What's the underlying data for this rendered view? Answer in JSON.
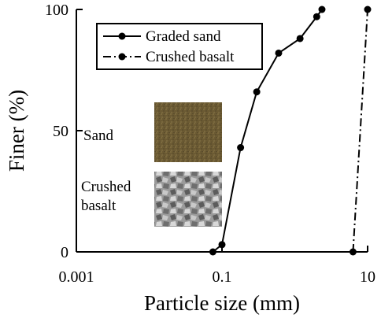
{
  "chart_data": {
    "type": "line",
    "xlabel": "Particle size (mm)",
    "ylabel": "Finer (%)",
    "x_scale": "log",
    "xlim": [
      0.001,
      10
    ],
    "ylim": [
      0,
      100
    ],
    "x_ticks": [
      {
        "value": 0.001,
        "label": "0.001"
      },
      {
        "value": 0.1,
        "label": "0.1"
      },
      {
        "value": 10,
        "label": "10"
      }
    ],
    "y_ticks": [
      {
        "value": 0,
        "label": "0"
      },
      {
        "value": 50,
        "label": "50"
      },
      {
        "value": 100,
        "label": "100"
      }
    ],
    "grid": false,
    "legend_position": "top-left",
    "series": [
      {
        "name": "Graded sand",
        "style": "solid",
        "color": "#000000",
        "points": [
          {
            "x": 0.075,
            "y": 0
          },
          {
            "x": 0.1,
            "y": 3
          },
          {
            "x": 0.18,
            "y": 43
          },
          {
            "x": 0.3,
            "y": 66
          },
          {
            "x": 0.6,
            "y": 82
          },
          {
            "x": 1.18,
            "y": 88
          },
          {
            "x": 2.0,
            "y": 97
          },
          {
            "x": 2.36,
            "y": 100
          }
        ]
      },
      {
        "name": "Crushed basalt",
        "style": "dash-dot",
        "color": "#000000",
        "points": [
          {
            "x": 6.3,
            "y": 0
          },
          {
            "x": 10,
            "y": 100
          }
        ]
      }
    ],
    "inset_labels": [
      "Sand",
      "Crushed\nbasalt"
    ]
  }
}
